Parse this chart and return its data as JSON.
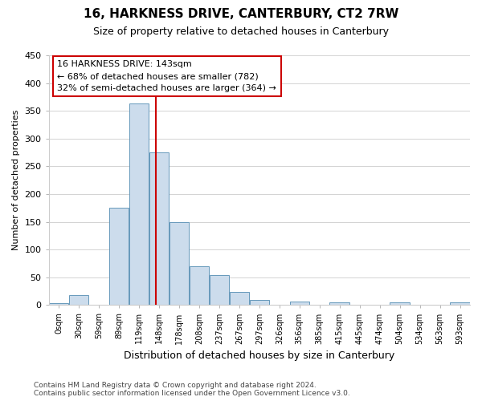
{
  "title": "16, HARKNESS DRIVE, CANTERBURY, CT2 7RW",
  "subtitle": "Size of property relative to detached houses in Canterbury",
  "xlabel": "Distribution of detached houses by size in Canterbury",
  "ylabel": "Number of detached properties",
  "bin_labels": [
    "0sqm",
    "30sqm",
    "59sqm",
    "89sqm",
    "119sqm",
    "148sqm",
    "178sqm",
    "208sqm",
    "237sqm",
    "267sqm",
    "297sqm",
    "326sqm",
    "356sqm",
    "385sqm",
    "415sqm",
    "445sqm",
    "474sqm",
    "504sqm",
    "534sqm",
    "563sqm",
    "593sqm"
  ],
  "bar_heights": [
    3,
    18,
    0,
    175,
    363,
    275,
    150,
    70,
    54,
    23,
    9,
    0,
    6,
    0,
    5,
    0,
    0,
    4,
    0,
    0,
    5
  ],
  "bar_color": "#ccdcec",
  "bar_edge_color": "#6699bb",
  "marker_bin_index": 5,
  "marker_color": "#cc0000",
  "ylim": [
    0,
    450
  ],
  "yticks": [
    0,
    50,
    100,
    150,
    200,
    250,
    300,
    350,
    400,
    450
  ],
  "annotation_line1": "16 HARKNESS DRIVE: 143sqm",
  "annotation_line2": "← 68% of detached houses are smaller (782)",
  "annotation_line3": "32% of semi-detached houses are larger (364) →",
  "annotation_box_facecolor": "#ffffff",
  "annotation_box_edgecolor": "#cc0000",
  "background_color": "#ffffff",
  "grid_color": "#cccccc",
  "footer1": "Contains HM Land Registry data © Crown copyright and database right 2024.",
  "footer2": "Contains public sector information licensed under the Open Government Licence v3.0.",
  "title_fontsize": 11,
  "subtitle_fontsize": 9,
  "xlabel_fontsize": 9,
  "ylabel_fontsize": 8,
  "tick_fontsize": 7,
  "footer_fontsize": 6.5,
  "annot_fontsize": 8
}
